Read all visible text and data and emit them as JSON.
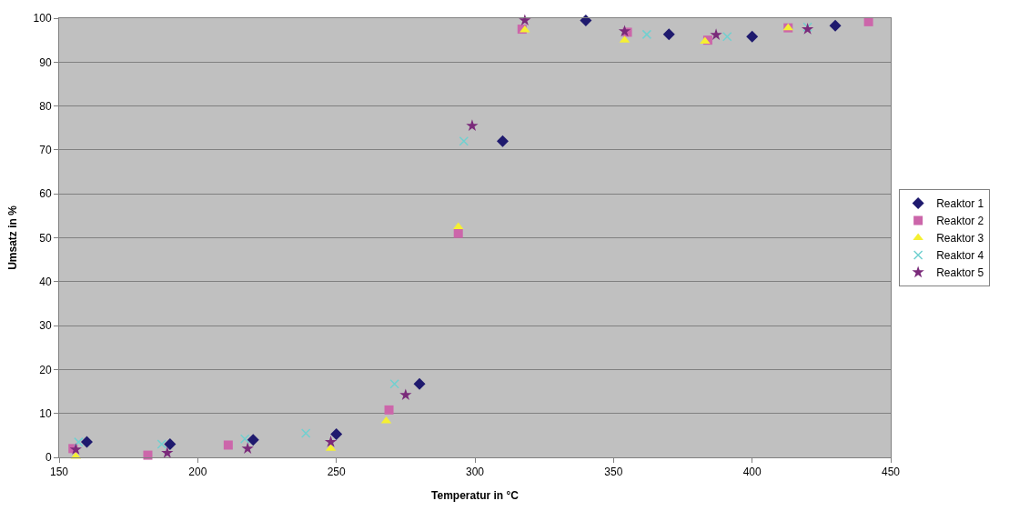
{
  "chart_data": {
    "type": "scatter",
    "xlabel": "Temperatur in °C",
    "ylabel": "Umsatz in %",
    "xlim": [
      150,
      450
    ],
    "xticks": [
      150,
      200,
      250,
      300,
      350,
      400,
      450
    ],
    "ylim": [
      0,
      100
    ],
    "yticks": [
      0,
      10,
      20,
      30,
      40,
      50,
      60,
      70,
      80,
      90,
      100
    ],
    "grid": "y",
    "legend": "right",
    "series": [
      {
        "name": "Reaktor 1",
        "color": "#1f1a6e",
        "marker": "diamond",
        "x": [
          160,
          190,
          220,
          250,
          280,
          310,
          340,
          370,
          400,
          430
        ],
        "values": [
          3.5,
          3,
          4,
          5.3,
          16.7,
          72,
          99.5,
          96.3,
          95.8,
          98.3
        ]
      },
      {
        "name": "Reaktor 2",
        "color": "#cc66aa",
        "marker": "square",
        "x": [
          155,
          182,
          211,
          269,
          294,
          317,
          355,
          384,
          413,
          442
        ],
        "values": [
          2,
          0.5,
          2.8,
          10.8,
          51,
          97.5,
          96.8,
          95,
          97.8,
          99.2
        ]
      },
      {
        "name": "Reaktor 3",
        "color": "#f5f032",
        "marker": "triangle",
        "x": [
          156,
          248,
          268,
          294,
          318,
          354,
          383,
          413
        ],
        "values": [
          0.2,
          2,
          8.3,
          52.5,
          97.3,
          95,
          94.7,
          97.8
        ]
      },
      {
        "name": "Reaktor 4",
        "color": "#70d0d0",
        "marker": "cross",
        "x": [
          157,
          187,
          217,
          239,
          271,
          296,
          362,
          391,
          420
        ],
        "values": [
          3.5,
          3,
          4.2,
          5.5,
          16.7,
          72,
          96.3,
          95.8,
          98
        ]
      },
      {
        "name": "Reaktor 5",
        "color": "#7a2a7a",
        "marker": "star",
        "x": [
          156,
          189,
          218,
          248,
          275,
          299,
          318,
          354,
          387,
          420
        ],
        "values": [
          1.8,
          1,
          2,
          3.5,
          14.2,
          75.5,
          99.5,
          97,
          96.2,
          97.5
        ]
      }
    ]
  }
}
